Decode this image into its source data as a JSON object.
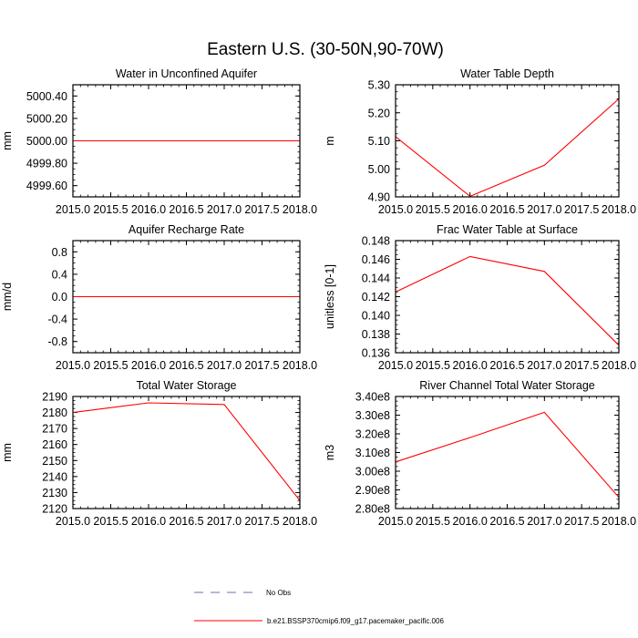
{
  "title": "Eastern U.S. (30-50N,90-70W)",
  "colors": {
    "model": "#ff0000",
    "obs": "#7b68ae"
  },
  "legend": {
    "obs_label": "No Obs",
    "model_label": "b.e21.BSSP370cmip6.f09_g17.pacemaker_pacific.006"
  },
  "chart_data": [
    {
      "type": "line",
      "title": "Water in Unconfined Aquifer",
      "ylabel": "mm",
      "x": [
        2015,
        2016,
        2017,
        2018
      ],
      "xlim": [
        2015.0,
        2018.0
      ],
      "xticks": [
        2015.0,
        2015.5,
        2016.0,
        2016.5,
        2017.0,
        2017.5,
        2018.0
      ],
      "xtick_labels": [
        "2015.0",
        "2015.5",
        "2016.0",
        "2016.5",
        "2017.0",
        "2017.5",
        "2018.0"
      ],
      "ylim": [
        4999.5,
        5000.5
      ],
      "yticks": [
        4999.6,
        4999.8,
        5000.0,
        5000.2,
        5000.4
      ],
      "ytick_labels": [
        "4999.60",
        "4999.80",
        "5000.00",
        "5000.20",
        "5000.40"
      ],
      "series": [
        {
          "values": [
            5000.0,
            5000.0,
            5000.0,
            5000.0
          ]
        }
      ]
    },
    {
      "type": "line",
      "title": "Water Table Depth",
      "ylabel": "m",
      "x": [
        2015,
        2016,
        2017,
        2018
      ],
      "xlim": [
        2015.0,
        2018.0
      ],
      "xticks": [
        2015.0,
        2015.5,
        2016.0,
        2016.5,
        2017.0,
        2017.5,
        2018.0
      ],
      "xtick_labels": [
        "2015.0",
        "2015.5",
        "2016.0",
        "2016.5",
        "2017.0",
        "2017.5",
        "2018.0"
      ],
      "ylim": [
        4.9,
        5.3
      ],
      "yticks": [
        4.9,
        5.0,
        5.1,
        5.2,
        5.3
      ],
      "ytick_labels": [
        "4.90",
        "5.00",
        "5.10",
        "5.20",
        "5.30"
      ],
      "series": [
        {
          "values": [
            5.115,
            4.902,
            5.013,
            5.25
          ]
        }
      ]
    },
    {
      "type": "line",
      "title": "Aquifer Recharge Rate",
      "ylabel": "mm/d",
      "x": [
        2015,
        2016,
        2017,
        2018
      ],
      "xlim": [
        2015.0,
        2018.0
      ],
      "xticks": [
        2015.0,
        2015.5,
        2016.0,
        2016.5,
        2017.0,
        2017.5,
        2018.0
      ],
      "xtick_labels": [
        "2015.0",
        "2015.5",
        "2016.0",
        "2016.5",
        "2017.0",
        "2017.5",
        "2018.0"
      ],
      "ylim": [
        -1.0,
        1.0
      ],
      "yticks": [
        -0.8,
        -0.4,
        0.0,
        0.4,
        0.8
      ],
      "ytick_labels": [
        "-0.8",
        "-0.4",
        "0.0",
        "0.4",
        "0.8"
      ],
      "series": [
        {
          "values": [
            0.0,
            0.0,
            0.0,
            0.0
          ]
        }
      ]
    },
    {
      "type": "line",
      "title": "Frac Water Table at Surface",
      "ylabel": "unitless [0-1]",
      "x": [
        2015,
        2016,
        2017,
        2018
      ],
      "xlim": [
        2015.0,
        2018.0
      ],
      "xticks": [
        2015.0,
        2015.5,
        2016.0,
        2016.5,
        2017.0,
        2017.5,
        2018.0
      ],
      "xtick_labels": [
        "2015.0",
        "2015.5",
        "2016.0",
        "2016.5",
        "2017.0",
        "2017.5",
        "2018.0"
      ],
      "ylim": [
        0.136,
        0.148
      ],
      "yticks": [
        0.136,
        0.138,
        0.14,
        0.142,
        0.144,
        0.146,
        0.148
      ],
      "ytick_labels": [
        "0.136",
        "0.138",
        "0.140",
        "0.142",
        "0.144",
        "0.146",
        "0.148"
      ],
      "series": [
        {
          "values": [
            0.1425,
            0.1463,
            0.1447,
            0.1368
          ]
        }
      ]
    },
    {
      "type": "line",
      "title": "Total Water Storage",
      "ylabel": "mm",
      "x": [
        2015,
        2016,
        2017,
        2018
      ],
      "xlim": [
        2015.0,
        2018.0
      ],
      "xticks": [
        2015.0,
        2015.5,
        2016.0,
        2016.5,
        2017.0,
        2017.5,
        2018.0
      ],
      "xtick_labels": [
        "2015.0",
        "2015.5",
        "2016.0",
        "2016.5",
        "2017.0",
        "2017.5",
        "2018.0"
      ],
      "ylim": [
        2120,
        2190
      ],
      "yticks": [
        2120,
        2130,
        2140,
        2150,
        2160,
        2170,
        2180,
        2190
      ],
      "ytick_labels": [
        "2120",
        "2130",
        "2140",
        "2150",
        "2160",
        "2170",
        "2180",
        "2190"
      ],
      "series": [
        {
          "values": [
            2180,
            2186,
            2185,
            2125
          ]
        }
      ]
    },
    {
      "type": "line",
      "title": "River Channel Total Water Storage",
      "ylabel": "m3",
      "x": [
        2015,
        2016,
        2017,
        2018
      ],
      "xlim": [
        2015.0,
        2018.0
      ],
      "xticks": [
        2015.0,
        2015.5,
        2016.0,
        2016.5,
        2017.0,
        2017.5,
        2018.0
      ],
      "xtick_labels": [
        "2015.0",
        "2015.5",
        "2016.0",
        "2016.5",
        "2017.0",
        "2017.5",
        "2018.0"
      ],
      "ylim": [
        280000000,
        340000000
      ],
      "yticks": [
        280000000,
        290000000,
        300000000,
        310000000,
        320000000,
        330000000,
        340000000
      ],
      "ytick_labels": [
        "2.80e8",
        "2.90e8",
        "3.00e8",
        "3.10e8",
        "3.20e8",
        "3.30e8",
        "3.40e8"
      ],
      "series": [
        {
          "values": [
            305000000,
            318000000,
            331500000,
            286000000
          ]
        }
      ]
    }
  ]
}
